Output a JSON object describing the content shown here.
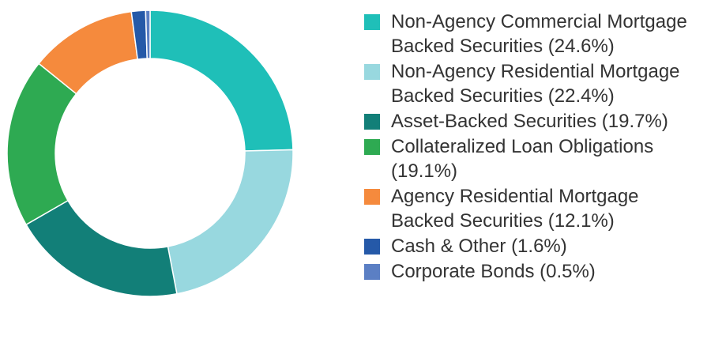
{
  "chart_data": {
    "type": "donut",
    "categories": [
      "Non-Agency Commercial Mortgage Backed Securities (24.6%)",
      "Non-Agency Residential Mortgage Backed Securities (22.4%)",
      "Asset-Backed Securities (19.7%)",
      "Collateralized Loan Obligations (19.1%)",
      "Agency Residential Mortgage Backed Securities (12.1%)",
      "Cash & Other (1.6%)",
      "Corporate Bonds (0.5%)"
    ],
    "values": [
      24.6,
      22.4,
      19.7,
      19.1,
      12.1,
      1.6,
      0.5
    ],
    "colors": [
      "#1fbfb8",
      "#98d8df",
      "#127f78",
      "#2eaa52",
      "#f58a3d",
      "#2559a8",
      "#5b7fc4"
    ],
    "legend": "right"
  }
}
